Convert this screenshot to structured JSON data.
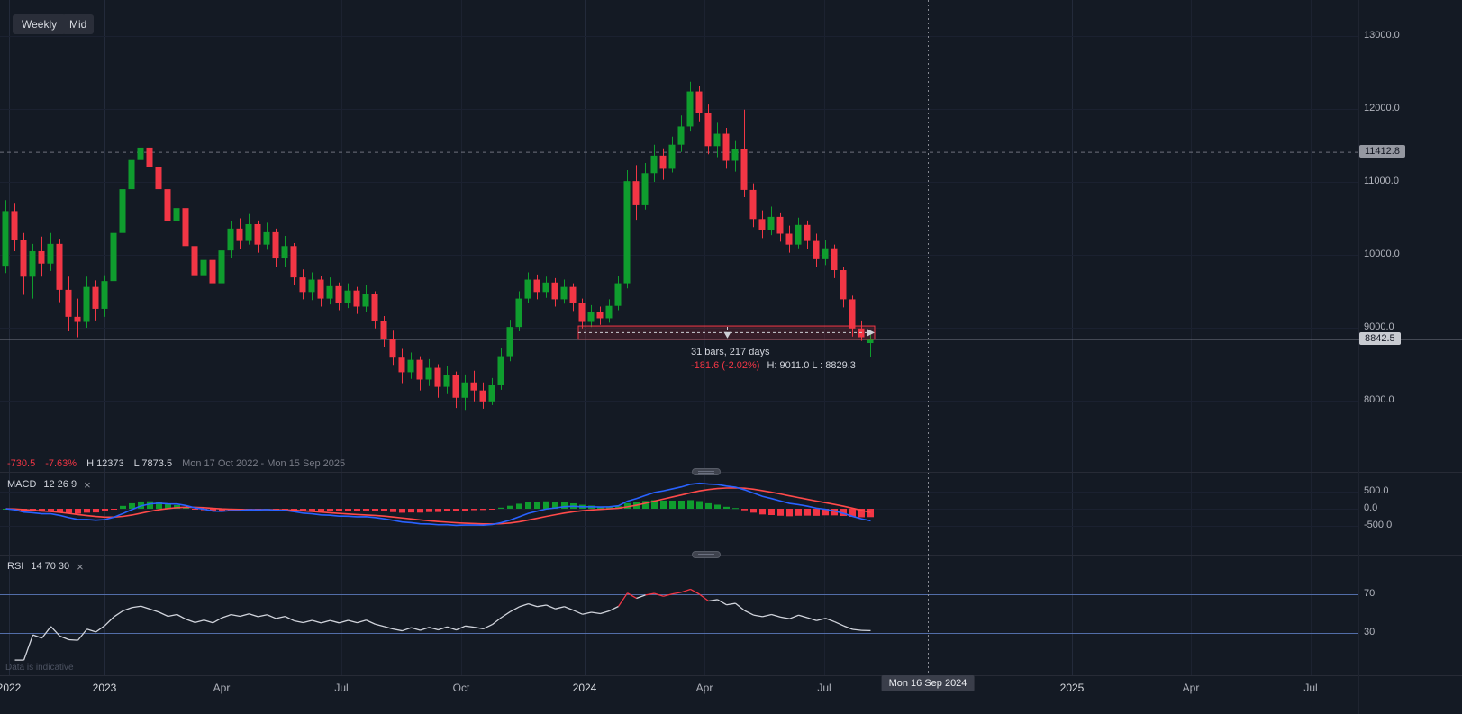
{
  "toolbar": {
    "interval": "Weekly",
    "source": "Mid"
  },
  "price_pane": {
    "legend": {
      "change": "-730.5",
      "change_pct": "-7.63%",
      "high": "H 12373",
      "low": "L 7873.5",
      "date_range": "Mon 17 Oct 2022 - Mon 15 Sep 2025"
    },
    "measurement": {
      "bars": "31 bars, 217 days",
      "change": "-181.6 (-2.02%)",
      "high_low": "H: 9011.0 L : 8829.3"
    }
  },
  "macd_pane": {
    "title": "MACD",
    "params": "12 26 9",
    "close": "×"
  },
  "rsi_pane": {
    "title": "RSI",
    "params": "14 70 30",
    "close": "×"
  },
  "footnote": "Data is indicative",
  "axis": {
    "price_ticks": [
      {
        "label": "13000.0",
        "value": 13000
      },
      {
        "label": "12000.0",
        "value": 12000
      },
      {
        "label": "11000.0",
        "value": 11000
      },
      {
        "label": "10000.0",
        "value": 10000
      },
      {
        "label": "9000.0",
        "value": 9000
      },
      {
        "label": "8000.0",
        "value": 8000
      }
    ],
    "price_levels": [
      {
        "label": "11412.8",
        "value": 11412.8,
        "line": "dashed",
        "tag_bg": "#9598a1",
        "tag_fg": "#131722"
      },
      {
        "label": "8842.5",
        "value": 8842.5,
        "line": "solid",
        "tag_bg": "#c8cbd1",
        "tag_fg": "#131722"
      }
    ],
    "macd_ticks": [
      {
        "label": "500.0",
        "value": 500
      },
      {
        "label": "0.0",
        "value": 0
      },
      {
        "label": "-500.0",
        "value": -500
      }
    ],
    "rsi_ticks": [
      {
        "label": "70",
        "value": 70
      },
      {
        "label": "30",
        "value": 30
      }
    ],
    "time_ticks": [
      {
        "label": "2022",
        "x": 10,
        "major": true
      },
      {
        "label": "2023",
        "x": 116,
        "major": true
      },
      {
        "label": "Apr",
        "x": 246,
        "major": false
      },
      {
        "label": "Jul",
        "x": 379,
        "major": false
      },
      {
        "label": "Oct",
        "x": 512,
        "major": false
      },
      {
        "label": "2024",
        "x": 649,
        "major": true
      },
      {
        "label": "Apr",
        "x": 782,
        "major": false
      },
      {
        "label": "Jul",
        "x": 915,
        "major": false
      },
      {
        "label": "2025",
        "x": 1190,
        "major": true
      },
      {
        "label": "Apr",
        "x": 1322,
        "major": false
      },
      {
        "label": "Jul",
        "x": 1455,
        "major": false
      }
    ],
    "crosshair_label": "Mon 16 Sep 2024"
  },
  "colors": {
    "up": "#0f9d2e",
    "down": "#f23645",
    "macd": "#2962ff",
    "signal": "#ff4a4a",
    "rsi": "#d1d4dc",
    "rsi_level": "#5d7cc0",
    "crosshair": "#9598a1"
  },
  "chart_data": {
    "type": "candlestick",
    "interval": "Weekly",
    "visible_range": "Mon 17 Oct 2022 - Mon 15 Sep 2025",
    "price_range_high": 12373,
    "price_range_low": 7873.5,
    "last_price": 8842.5,
    "alert_level": 11412.8,
    "ylim": [
      7700,
      13200
    ],
    "candles": [
      [
        9850,
        10750,
        9750,
        10600
      ],
      [
        10600,
        10700,
        10050,
        10200
      ],
      [
        10200,
        10300,
        9450,
        9700
      ],
      [
        9700,
        10150,
        9400,
        10050
      ],
      [
        10050,
        10250,
        9700,
        9880
      ],
      [
        9880,
        10300,
        9780,
        10150
      ],
      [
        10150,
        10220,
        9350,
        9520
      ],
      [
        9520,
        9700,
        8950,
        9150
      ],
      [
        9150,
        9400,
        8870,
        9080
      ],
      [
        9080,
        9700,
        9000,
        9560
      ],
      [
        9560,
        9650,
        9100,
        9260
      ],
      [
        9260,
        9720,
        9150,
        9640
      ],
      [
        9640,
        10420,
        9580,
        10300
      ],
      [
        10300,
        11020,
        10240,
        10900
      ],
      [
        10900,
        11420,
        10820,
        11300
      ],
      [
        11300,
        11580,
        11200,
        11470
      ],
      [
        11470,
        12250,
        11080,
        11200
      ],
      [
        11200,
        11380,
        10780,
        10900
      ],
      [
        10900,
        11000,
        10340,
        10460
      ],
      [
        10460,
        10780,
        10320,
        10640
      ],
      [
        10640,
        10720,
        9980,
        10120
      ],
      [
        10120,
        10220,
        9580,
        9720
      ],
      [
        9720,
        10080,
        9560,
        9930
      ],
      [
        9930,
        9990,
        9480,
        9610
      ],
      [
        9610,
        10160,
        9550,
        10060
      ],
      [
        10060,
        10460,
        9960,
        10360
      ],
      [
        10360,
        10500,
        10080,
        10190
      ],
      [
        10190,
        10560,
        10140,
        10420
      ],
      [
        10420,
        10470,
        10030,
        10140
      ],
      [
        10140,
        10440,
        10070,
        10310
      ],
      [
        10310,
        10360,
        9830,
        9950
      ],
      [
        9950,
        10260,
        9840,
        10120
      ],
      [
        10120,
        10160,
        9590,
        9690
      ],
      [
        9690,
        9800,
        9390,
        9490
      ],
      [
        9490,
        9760,
        9380,
        9660
      ],
      [
        9660,
        9710,
        9290,
        9400
      ],
      [
        9400,
        9690,
        9320,
        9570
      ],
      [
        9570,
        9620,
        9240,
        9340
      ],
      [
        9340,
        9610,
        9270,
        9510
      ],
      [
        9510,
        9560,
        9190,
        9290
      ],
      [
        9290,
        9590,
        9220,
        9460
      ],
      [
        9460,
        9500,
        8990,
        9090
      ],
      [
        9090,
        9160,
        8740,
        8850
      ],
      [
        8850,
        8960,
        8490,
        8590
      ],
      [
        8590,
        8710,
        8240,
        8390
      ],
      [
        8390,
        8660,
        8300,
        8560
      ],
      [
        8560,
        8610,
        8140,
        8290
      ],
      [
        8290,
        8570,
        8200,
        8450
      ],
      [
        8450,
        8500,
        8040,
        8190
      ],
      [
        8190,
        8480,
        8090,
        8350
      ],
      [
        8350,
        8400,
        7900,
        8040
      ],
      [
        8040,
        8360,
        7873.5,
        8250
      ],
      [
        8250,
        8410,
        7990,
        8140
      ],
      [
        8140,
        8250,
        7890,
        7990
      ],
      [
        7990,
        8310,
        7940,
        8210
      ],
      [
        8210,
        8720,
        8150,
        8610
      ],
      [
        8610,
        9110,
        8540,
        9010
      ],
      [
        9010,
        9500,
        8950,
        9400
      ],
      [
        9400,
        9760,
        9340,
        9660
      ],
      [
        9660,
        9730,
        9390,
        9490
      ],
      [
        9490,
        9700,
        9410,
        9620
      ],
      [
        9620,
        9680,
        9290,
        9390
      ],
      [
        9390,
        9660,
        9330,
        9560
      ],
      [
        9560,
        9610,
        9230,
        9340
      ],
      [
        9340,
        9400,
        8990,
        9080
      ],
      [
        9080,
        9310,
        9010,
        9210
      ],
      [
        9210,
        9290,
        9040,
        9130
      ],
      [
        9130,
        9390,
        9070,
        9300
      ],
      [
        9300,
        9710,
        9240,
        9610
      ],
      [
        9610,
        11160,
        9540,
        11010
      ],
      [
        11010,
        11230,
        10480,
        10680
      ],
      [
        10680,
        11260,
        10620,
        11120
      ],
      [
        11120,
        11510,
        11000,
        11360
      ],
      [
        11360,
        11460,
        11030,
        11180
      ],
      [
        11180,
        11620,
        11130,
        11510
      ],
      [
        11510,
        11910,
        11410,
        11760
      ],
      [
        11760,
        12373,
        11690,
        12240
      ],
      [
        12240,
        12320,
        11830,
        11940
      ],
      [
        11940,
        12060,
        11380,
        11490
      ],
      [
        11490,
        11810,
        11340,
        11660
      ],
      [
        11660,
        11740,
        11180,
        11290
      ],
      [
        11290,
        11560,
        11140,
        11450
      ],
      [
        11450,
        11990,
        10790,
        10890
      ],
      [
        10890,
        10980,
        10380,
        10490
      ],
      [
        10490,
        10610,
        10230,
        10340
      ],
      [
        10340,
        10660,
        10270,
        10520
      ],
      [
        10520,
        10570,
        10180,
        10290
      ],
      [
        10290,
        10400,
        10030,
        10140
      ],
      [
        10140,
        10510,
        10090,
        10410
      ],
      [
        10410,
        10470,
        10080,
        10190
      ],
      [
        10190,
        10290,
        9830,
        9940
      ],
      [
        9940,
        10210,
        9860,
        10090
      ],
      [
        10090,
        10140,
        9680,
        9790
      ],
      [
        9790,
        9840,
        9280,
        9390
      ],
      [
        9390,
        9440,
        8880,
        8990
      ],
      [
        8990,
        9100,
        8820,
        8870
      ],
      [
        8790,
        8910,
        8600,
        8842.5
      ]
    ],
    "indicators": [
      {
        "name": "MACD",
        "params": [
          12,
          26,
          9
        ]
      },
      {
        "name": "RSI",
        "params": [
          14,
          70,
          30
        ]
      }
    ],
    "measurement": {
      "from_index": 64,
      "to_index": 96,
      "from_price": 9024.1,
      "to_price": 8842.5
    }
  }
}
